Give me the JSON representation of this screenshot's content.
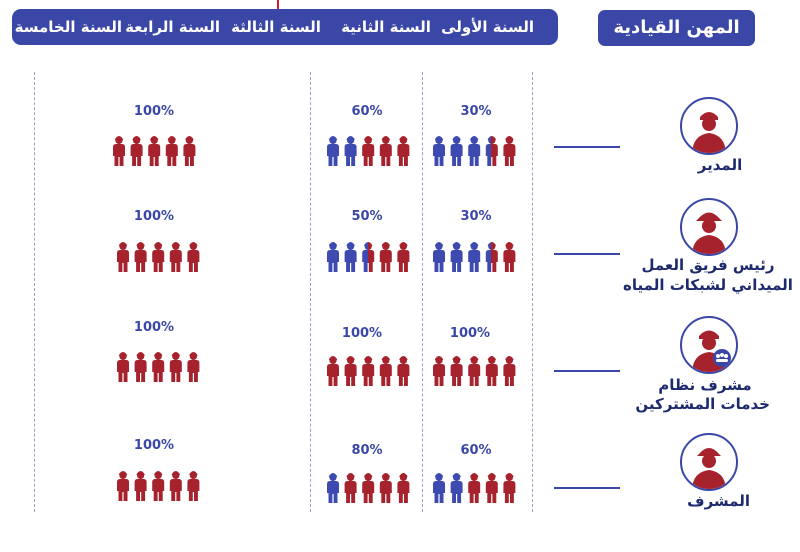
{
  "header": {
    "years": [
      "السنة الأولى",
      "السنة الثانية",
      "السنة الثالثة",
      "السنة الرابعة",
      "السنة الخامسة"
    ],
    "section_title": "المهن القيادية"
  },
  "roles": [
    {
      "name": "المدير",
      "icon": "manager-icon"
    },
    {
      "name": "رئيس فريق العمل الميداني لشبكات المياه",
      "line1": "رئيس فريق العمل",
      "line2": "الميداني لشبكات المياه",
      "icon": "field-team-leader-icon"
    },
    {
      "name": "مشرف نظام خدمات المشتركين",
      "line1": "مشرف نظام",
      "line2": "خدمات المشتركين",
      "icon": "subscriber-services-supervisor-icon"
    },
    {
      "name": "المشرف",
      "icon": "supervisor-icon"
    }
  ],
  "colors": {
    "navy": "#3b47a6",
    "red": "#a6232e",
    "icon_blue": "#3d4bb0",
    "label": "#1e2a6e"
  },
  "chart_data": {
    "type": "pictogram",
    "unit": "%",
    "people_per_group": 5,
    "categories": [
      "المدير",
      "رئيس فريق العمل الميداني لشبكات المياه",
      "مشرف نظام خدمات المشتركين",
      "المشرف"
    ],
    "series": [
      {
        "name": "السنة الأولى",
        "values": [
          30,
          30,
          100,
          60
        ]
      },
      {
        "name": "السنة الثانية",
        "values": [
          60,
          50,
          100,
          80
        ]
      },
      {
        "name": "السنة الخامسة",
        "values": [
          100,
          100,
          100,
          100
        ]
      }
    ],
    "value_labels": [
      [
        "30%",
        "60%",
        "100%"
      ],
      [
        "30%",
        "50%",
        "100%"
      ],
      [
        "100%",
        "100%",
        "100%"
      ],
      [
        "60%",
        "80%",
        "100%"
      ]
    ]
  }
}
